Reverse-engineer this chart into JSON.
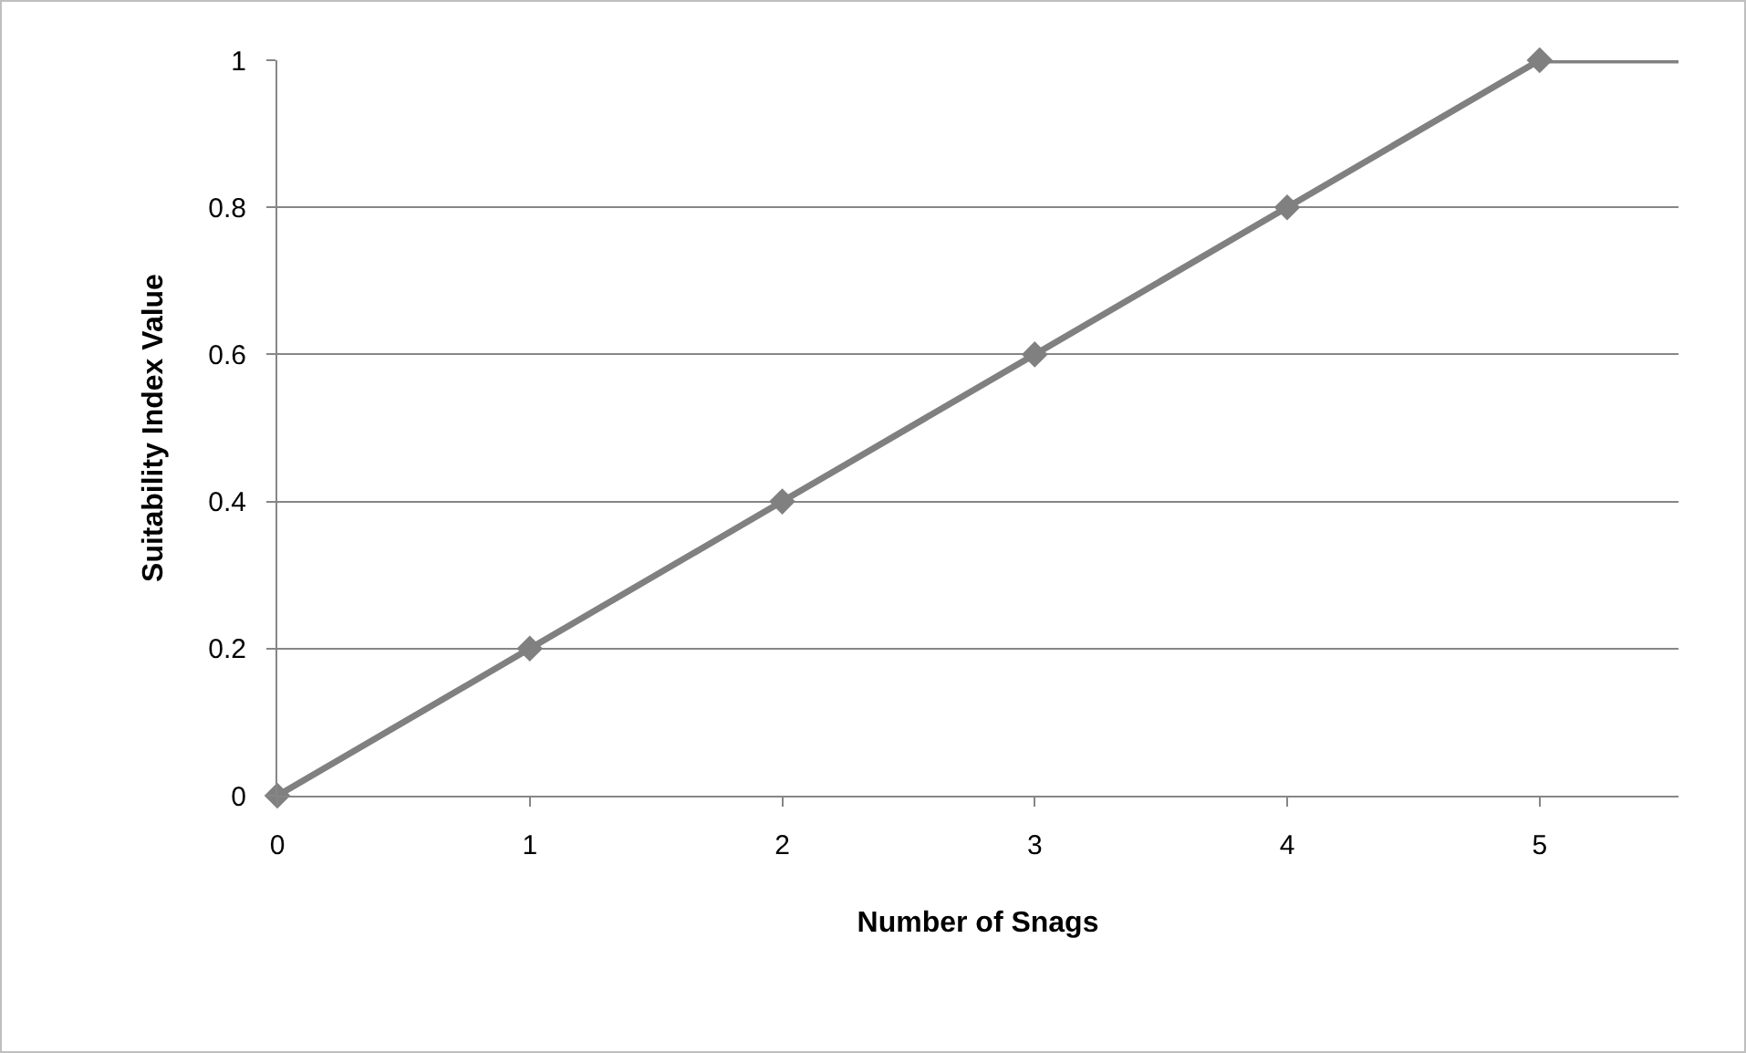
{
  "chart_data": {
    "type": "line",
    "xlabel": "Number of Snags",
    "ylabel": "Suitability Index Value",
    "xlim": [
      0,
      5.55
    ],
    "xticks": [
      0,
      1,
      2,
      3,
      4,
      5
    ],
    "ylim": [
      0,
      1
    ],
    "yticks": [
      0,
      0.2,
      0.4,
      0.6,
      0.8,
      1
    ],
    "grid": "y",
    "line_style": "solid",
    "series": [
      {
        "color": "#808080",
        "marker": "diamond",
        "x": [
          0,
          1,
          2,
          3,
          4,
          5
        ],
        "values": [
          0,
          0.2,
          0.4,
          0.6,
          0.8,
          1
        ]
      },
      {
        "color": "#808080",
        "marker": "none",
        "x": [
          5,
          5.55
        ],
        "values": [
          1,
          1
        ]
      }
    ]
  }
}
